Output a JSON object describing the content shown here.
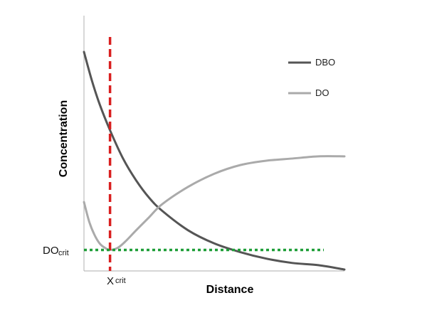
{
  "chart_data": {
    "type": "line",
    "title": "",
    "xlabel": "Distance",
    "ylabel": "Concentration",
    "xlim": [
      0,
      100
    ],
    "ylim": [
      0,
      100
    ],
    "grid": false,
    "legend_position": "top-right",
    "series": [
      {
        "name": "DBO",
        "color": "#555555",
        "x": [
          0,
          3,
          6,
          10,
          15,
          20,
          25,
          30,
          40,
          50,
          60,
          70,
          80,
          90,
          100
        ],
        "y": [
          100,
          87,
          76,
          64,
          51,
          41,
          33,
          27,
          18,
          12,
          8,
          5,
          3,
          2,
          0
        ]
      },
      {
        "name": "DO",
        "color": "#aaaaaa",
        "x": [
          0,
          2,
          4,
          6,
          8,
          10,
          13,
          16,
          20,
          25,
          30,
          40,
          50,
          60,
          70,
          80,
          90,
          100
        ],
        "y": [
          31,
          22,
          16,
          12,
          10,
          9,
          10,
          13,
          18,
          24,
          30,
          38,
          44,
          48,
          50,
          51,
          52,
          52
        ]
      }
    ],
    "annotations": {
      "x_crit": {
        "x": 10,
        "color": "#d91f1f",
        "label_main": "X",
        "label_sub": "crit"
      },
      "do_crit": {
        "y": 9,
        "color": "#1e9e38",
        "label_main": "DO",
        "label_sub": "crit"
      }
    }
  }
}
